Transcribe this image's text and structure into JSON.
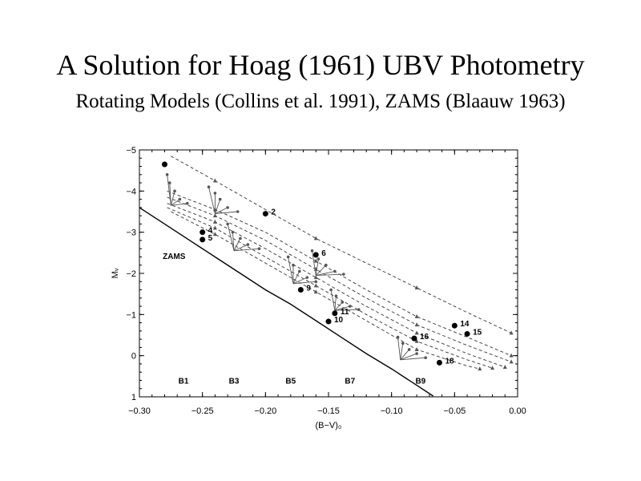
{
  "slide": {
    "title": "A Solution for Hoag (1961) UBV Photometry",
    "subtitle": "Rotating Models (Collins et al. 1991), ZAMS (Blaauw 1963)"
  },
  "chart_data": {
    "type": "scatter",
    "xlabel": "(B−V)₀",
    "ylabel": "Mᵥ",
    "xlim": [
      -0.3,
      0.0
    ],
    "ylim": [
      1,
      -5
    ],
    "x_ticks": [
      -0.3,
      -0.25,
      -0.2,
      -0.15,
      -0.1,
      -0.05,
      0.0
    ],
    "x_tick_labels": [
      "−0.30",
      "−0.25",
      "−0.20",
      "−0.15",
      "−0.10",
      "−0.05",
      "0.00"
    ],
    "y_ticks": [
      -5,
      -4,
      -3,
      -2,
      -1,
      0,
      1
    ],
    "y_tick_labels": [
      "−5",
      "−4",
      "−3",
      "−2",
      "−1",
      "0",
      "1"
    ],
    "zams_label": "ZAMS",
    "zams_curve": [
      [
        -0.3,
        -3.6
      ],
      [
        -0.28,
        -3.2
      ],
      [
        -0.26,
        -2.8
      ],
      [
        -0.24,
        -2.4
      ],
      [
        -0.22,
        -2.0
      ],
      [
        -0.2,
        -1.6
      ],
      [
        -0.18,
        -1.25
      ],
      [
        -0.16,
        -0.85
      ],
      [
        -0.14,
        -0.45
      ],
      [
        -0.12,
        -0.05
      ],
      [
        -0.1,
        0.32
      ],
      [
        -0.08,
        0.72
      ],
      [
        -0.067,
        0.98
      ]
    ],
    "spectral_labels": [
      {
        "label": "B1",
        "x": -0.265
      },
      {
        "label": "B3",
        "x": -0.225
      },
      {
        "label": "B5",
        "x": -0.18
      },
      {
        "label": "B7",
        "x": -0.133
      },
      {
        "label": "B9",
        "x": -0.077
      }
    ],
    "spectral_label_y": 0.6,
    "stars": [
      {
        "label": "",
        "x": -0.28,
        "y": -4.65
      },
      {
        "label": "2",
        "x": -0.2,
        "y": -3.45
      },
      {
        "label": "4",
        "x": -0.25,
        "y": -3.0
      },
      {
        "label": "5",
        "x": -0.25,
        "y": -2.82
      },
      {
        "label": "6",
        "x": -0.16,
        "y": -2.45
      },
      {
        "label": "9",
        "x": -0.172,
        "y": -1.6
      },
      {
        "label": "11",
        "x": -0.145,
        "y": -1.03
      },
      {
        "label": "10",
        "x": -0.15,
        "y": -0.83
      },
      {
        "label": "14",
        "x": -0.05,
        "y": -0.73
      },
      {
        "label": "15",
        "x": -0.04,
        "y": -0.53
      },
      {
        "label": "16",
        "x": -0.082,
        "y": -0.42
      },
      {
        "label": "18",
        "x": -0.062,
        "y": 0.17
      }
    ],
    "dashed_tracks": [
      [
        [
          -0.275,
          -4.85
        ],
        [
          -0.24,
          -4.25
        ],
        [
          -0.2,
          -3.55
        ],
        [
          -0.16,
          -2.85
        ],
        [
          -0.12,
          -2.25
        ],
        [
          -0.08,
          -1.65
        ],
        [
          -0.04,
          -1.05
        ],
        [
          -0.005,
          -0.55
        ]
      ],
      [
        [
          -0.278,
          -4.0
        ],
        [
          -0.24,
          -3.55
        ],
        [
          -0.2,
          -3.0
        ],
        [
          -0.16,
          -2.3
        ],
        [
          -0.12,
          -1.6
        ],
        [
          -0.08,
          -0.95
        ],
        [
          -0.04,
          -0.45
        ],
        [
          -0.005,
          0.0
        ]
      ],
      [
        [
          -0.278,
          -3.85
        ],
        [
          -0.24,
          -3.4
        ],
        [
          -0.2,
          -2.8
        ],
        [
          -0.16,
          -2.1
        ],
        [
          -0.12,
          -1.4
        ],
        [
          -0.08,
          -0.75
        ],
        [
          -0.04,
          -0.25
        ],
        [
          -0.005,
          0.15
        ]
      ],
      [
        [
          -0.278,
          -3.7
        ],
        [
          -0.24,
          -3.25
        ],
        [
          -0.2,
          -2.6
        ],
        [
          -0.16,
          -1.9
        ],
        [
          -0.12,
          -1.2
        ],
        [
          -0.08,
          -0.55
        ],
        [
          -0.04,
          -0.05
        ],
        [
          -0.01,
          0.28
        ]
      ],
      [
        [
          -0.278,
          -3.6
        ],
        [
          -0.24,
          -3.1
        ],
        [
          -0.2,
          -2.4
        ],
        [
          -0.16,
          -1.7
        ],
        [
          -0.12,
          -1.0
        ],
        [
          -0.08,
          -0.35
        ],
        [
          -0.04,
          0.1
        ],
        [
          -0.02,
          0.3
        ]
      ],
      [
        [
          -0.275,
          -3.5
        ],
        [
          -0.24,
          -2.95
        ],
        [
          -0.2,
          -2.25
        ],
        [
          -0.16,
          -1.55
        ],
        [
          -0.12,
          -0.85
        ],
        [
          -0.08,
          -0.15
        ],
        [
          -0.04,
          0.25
        ],
        [
          -0.03,
          0.32
        ]
      ]
    ],
    "rotation_fans": [
      {
        "base": [
          -0.275,
          -3.65
        ],
        "tips": [
          [
            -0.278,
            -4.4
          ],
          [
            -0.276,
            -4.2
          ],
          [
            -0.272,
            -4.0
          ],
          [
            -0.268,
            -3.8
          ],
          [
            -0.262,
            -3.7
          ]
        ]
      },
      {
        "base": [
          -0.24,
          -3.45
        ],
        "tips": [
          [
            -0.245,
            -4.1
          ],
          [
            -0.24,
            -3.95
          ],
          [
            -0.236,
            -3.8
          ],
          [
            -0.23,
            -3.6
          ],
          [
            -0.222,
            -3.5
          ]
        ]
      },
      {
        "base": [
          -0.225,
          -2.55
        ],
        "tips": [
          [
            -0.23,
            -3.2
          ],
          [
            -0.226,
            -3.0
          ],
          [
            -0.22,
            -2.85
          ],
          [
            -0.214,
            -2.7
          ],
          [
            -0.205,
            -2.6
          ]
        ]
      },
      {
        "base": [
          -0.178,
          -1.75
        ],
        "tips": [
          [
            -0.182,
            -2.4
          ],
          [
            -0.178,
            -2.2
          ],
          [
            -0.173,
            -2.05
          ],
          [
            -0.167,
            -1.9
          ],
          [
            -0.16,
            -1.8
          ]
        ]
      },
      {
        "base": [
          -0.16,
          -1.95
        ],
        "tips": [
          [
            -0.163,
            -2.55
          ],
          [
            -0.158,
            -2.35
          ],
          [
            -0.152,
            -2.2
          ],
          [
            -0.145,
            -2.05
          ],
          [
            -0.138,
            -1.98
          ]
        ]
      },
      {
        "base": [
          -0.145,
          -1.1
        ],
        "tips": [
          [
            -0.148,
            -1.6
          ],
          [
            -0.144,
            -1.45
          ],
          [
            -0.139,
            -1.3
          ],
          [
            -0.133,
            -1.2
          ],
          [
            -0.126,
            -1.12
          ]
        ]
      },
      {
        "base": [
          -0.093,
          0.1
        ],
        "tips": [
          [
            -0.095,
            -0.45
          ],
          [
            -0.091,
            -0.3
          ],
          [
            -0.086,
            -0.15
          ],
          [
            -0.08,
            -0.05
          ],
          [
            -0.073,
            0.05
          ]
        ]
      }
    ]
  }
}
